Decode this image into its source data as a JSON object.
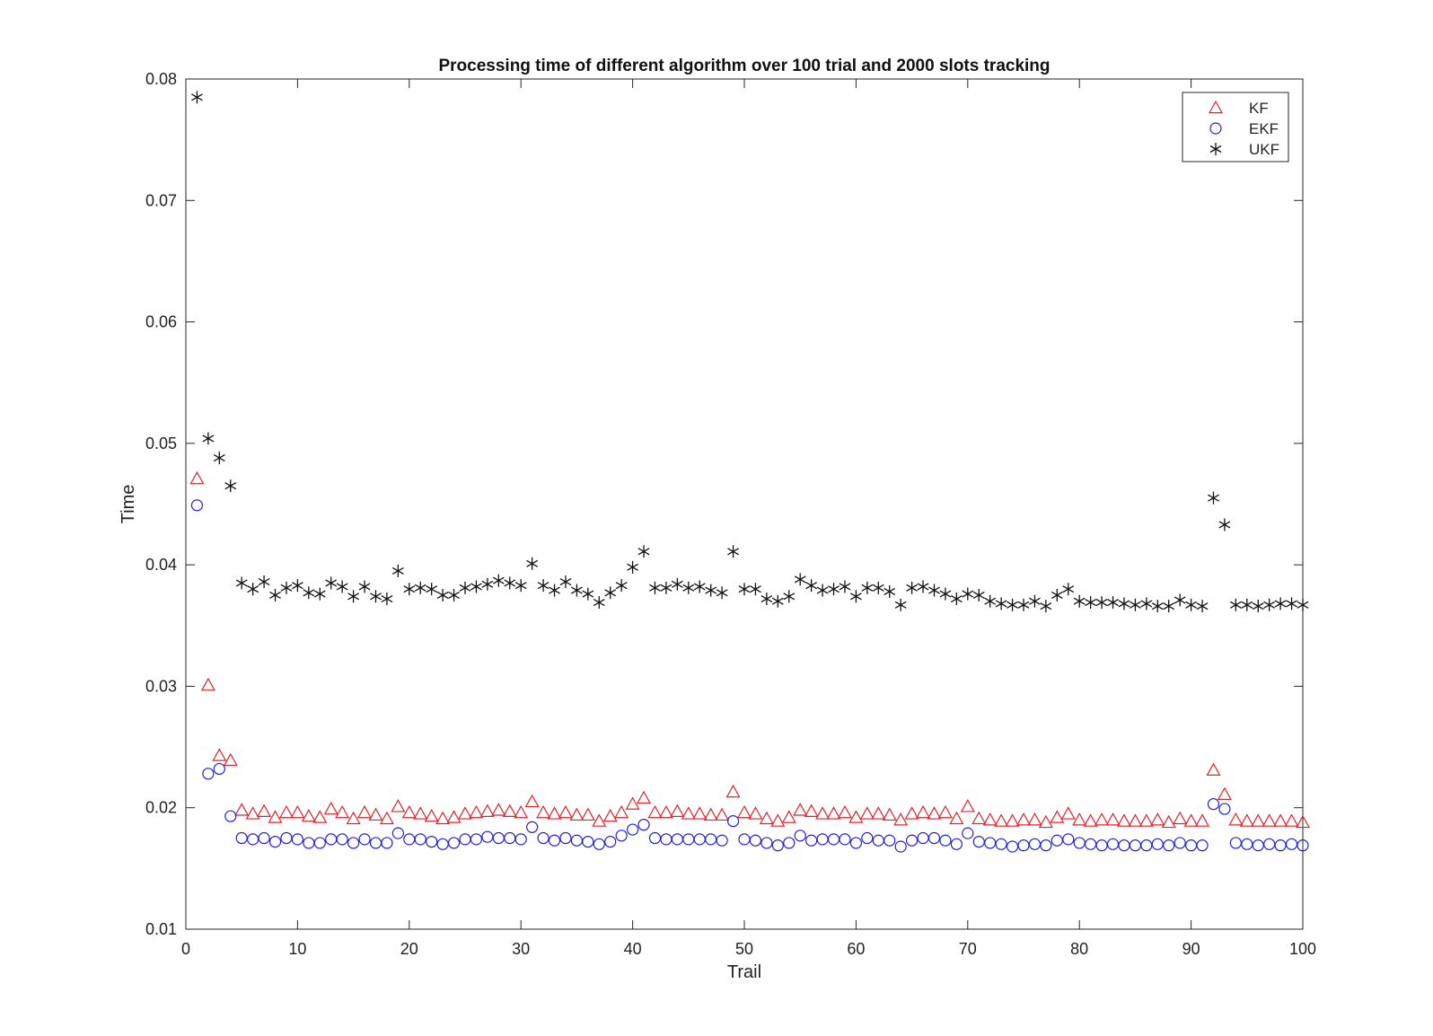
{
  "chart_data": {
    "type": "scatter",
    "title": "Processing time of different algorithm over 100 trial and 2000 slots tracking",
    "xlabel": "Trail",
    "ylabel": "Time",
    "xlim": [
      0,
      100
    ],
    "ylim": [
      0.01,
      0.08
    ],
    "xticks": [
      0,
      10,
      20,
      30,
      40,
      50,
      60,
      70,
      80,
      90,
      100
    ],
    "yticks": [
      0.01,
      0.02,
      0.03,
      0.04,
      0.05,
      0.06,
      0.07,
      0.08
    ],
    "xtick_labels": [
      "0",
      "10",
      "20",
      "30",
      "40",
      "50",
      "60",
      "70",
      "80",
      "90",
      "100"
    ],
    "ytick_labels": [
      "0.01",
      "0.02",
      "0.03",
      "0.04",
      "0.05",
      "0.06",
      "0.07",
      "0.08"
    ],
    "grid": false,
    "legend_position": "top-right",
    "series": [
      {
        "name": "KF",
        "marker": "triangle",
        "color": "#e8202a",
        "values": [
          0.0471,
          0.0301,
          0.0243,
          0.0239,
          0.0198,
          0.0195,
          0.0197,
          0.0192,
          0.0196,
          0.0196,
          0.0193,
          0.0192,
          0.0199,
          0.0196,
          0.0191,
          0.0196,
          0.0194,
          0.0191,
          0.0201,
          0.0196,
          0.0195,
          0.0193,
          0.0191,
          0.0192,
          0.0195,
          0.0196,
          0.0197,
          0.0198,
          0.0197,
          0.0196,
          0.0205,
          0.0196,
          0.0195,
          0.0196,
          0.0194,
          0.0194,
          0.0189,
          0.0193,
          0.0196,
          0.0203,
          0.0208,
          0.0196,
          0.0196,
          0.0197,
          0.0195,
          0.0195,
          0.0194,
          0.0194,
          0.0213,
          0.0196,
          0.0195,
          0.0191,
          0.0189,
          0.0192,
          0.0198,
          0.0197,
          0.0195,
          0.0195,
          0.0196,
          0.0192,
          0.0195,
          0.0195,
          0.0194,
          0.019,
          0.0195,
          0.0196,
          0.0195,
          0.0196,
          0.0191,
          0.0201,
          0.0191,
          0.019,
          0.0189,
          0.0189,
          0.019,
          0.019,
          0.0188,
          0.0192,
          0.0195,
          0.019,
          0.0189,
          0.019,
          0.019,
          0.0189,
          0.0189,
          0.0189,
          0.019,
          0.0188,
          0.0191,
          0.0189,
          0.0189,
          0.0231,
          0.0211,
          0.019,
          0.0189,
          0.0189,
          0.0189,
          0.0189,
          0.0189,
          0.0188
        ]
      },
      {
        "name": "EKF",
        "marker": "circle",
        "color": "#2020e0",
        "values": [
          0.0449,
          0.0228,
          0.0232,
          0.0193,
          0.0175,
          0.0174,
          0.0175,
          0.0172,
          0.0175,
          0.0174,
          0.0171,
          0.0171,
          0.0174,
          0.0174,
          0.0171,
          0.0174,
          0.0171,
          0.0171,
          0.0179,
          0.0174,
          0.0174,
          0.0172,
          0.017,
          0.0171,
          0.0174,
          0.0174,
          0.0176,
          0.0175,
          0.0175,
          0.0174,
          0.0184,
          0.0175,
          0.0173,
          0.0175,
          0.0173,
          0.0172,
          0.017,
          0.0172,
          0.0177,
          0.0182,
          0.0186,
          0.0175,
          0.0174,
          0.0174,
          0.0174,
          0.0174,
          0.0174,
          0.0173,
          0.0189,
          0.0174,
          0.0173,
          0.0171,
          0.0169,
          0.0171,
          0.0177,
          0.0173,
          0.0174,
          0.0174,
          0.0174,
          0.0171,
          0.0175,
          0.0173,
          0.0173,
          0.0168,
          0.0173,
          0.0175,
          0.0175,
          0.0173,
          0.017,
          0.0179,
          0.0172,
          0.0171,
          0.017,
          0.0168,
          0.0169,
          0.017,
          0.0169,
          0.0173,
          0.0174,
          0.0171,
          0.017,
          0.0169,
          0.017,
          0.0169,
          0.0169,
          0.0169,
          0.017,
          0.0169,
          0.0171,
          0.0169,
          0.0169,
          0.0203,
          0.0199,
          0.0171,
          0.017,
          0.0169,
          0.017,
          0.0169,
          0.017,
          0.0169
        ]
      },
      {
        "name": "UKF",
        "marker": "asterisk",
        "color": "#111111",
        "values": [
          0.0785,
          0.0504,
          0.0488,
          0.0465,
          0.0385,
          0.038,
          0.0386,
          0.0375,
          0.0381,
          0.0383,
          0.0377,
          0.0376,
          0.0385,
          0.0382,
          0.0374,
          0.0382,
          0.0374,
          0.0372,
          0.0395,
          0.038,
          0.0381,
          0.038,
          0.0375,
          0.0375,
          0.0381,
          0.0382,
          0.0384,
          0.0387,
          0.0385,
          0.0383,
          0.0401,
          0.0383,
          0.0379,
          0.0386,
          0.0379,
          0.0376,
          0.0369,
          0.0377,
          0.0383,
          0.0398,
          0.0411,
          0.0381,
          0.0381,
          0.0384,
          0.0381,
          0.0382,
          0.0379,
          0.0377,
          0.0411,
          0.038,
          0.038,
          0.0372,
          0.037,
          0.0374,
          0.0388,
          0.0383,
          0.0379,
          0.038,
          0.0382,
          0.0374,
          0.0381,
          0.0381,
          0.0378,
          0.0367,
          0.0381,
          0.0382,
          0.0379,
          0.0376,
          0.0372,
          0.0376,
          0.0375,
          0.037,
          0.0368,
          0.0367,
          0.0367,
          0.037,
          0.0366,
          0.0375,
          0.038,
          0.037,
          0.0369,
          0.0369,
          0.0369,
          0.0368,
          0.0367,
          0.0368,
          0.0366,
          0.0366,
          0.0371,
          0.0367,
          0.0366,
          0.0455,
          0.0433,
          0.0367,
          0.0367,
          0.0366,
          0.0367,
          0.0368,
          0.0368,
          0.0367
        ]
      }
    ]
  }
}
